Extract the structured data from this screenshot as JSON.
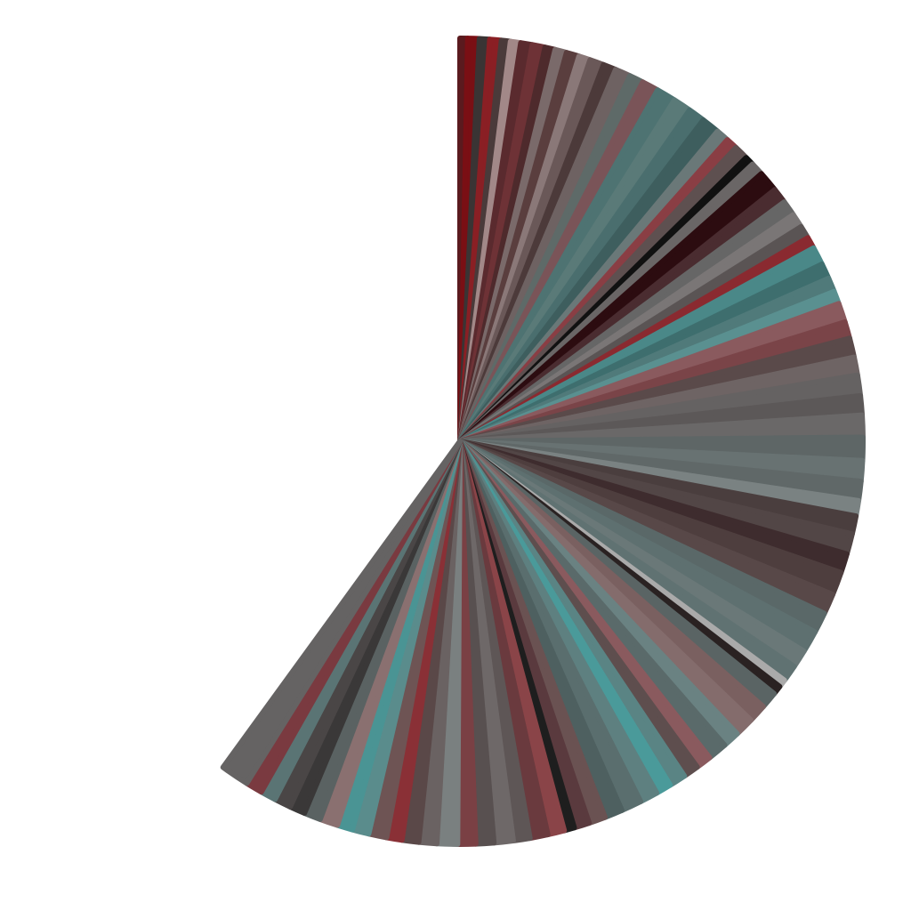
{
  "chart_data": {
    "type": "pie",
    "title": "",
    "legend": "none",
    "start_angle_deg": 0,
    "total_sweep_deg": 216,
    "slices": [
      {
        "value": 0.6,
        "color": "#5a1a1e"
      },
      {
        "value": 0.9,
        "color": "#7a0f14"
      },
      {
        "value": 0.8,
        "color": "#3a3434"
      },
      {
        "value": 0.9,
        "color": "#8a1f24"
      },
      {
        "value": 0.7,
        "color": "#4a3a3a"
      },
      {
        "value": 0.8,
        "color": "#a28888"
      },
      {
        "value": 0.9,
        "color": "#5a2a2e"
      },
      {
        "value": 1.0,
        "color": "#6e3236"
      },
      {
        "value": 0.8,
        "color": "#4e2a2c"
      },
      {
        "value": 0.9,
        "color": "#7a6a6a"
      },
      {
        "value": 1.0,
        "color": "#5a3e3e"
      },
      {
        "value": 0.9,
        "color": "#8a7878"
      },
      {
        "value": 1.1,
        "color": "#6a5858"
      },
      {
        "value": 1.0,
        "color": "#4c3a3a"
      },
      {
        "value": 1.2,
        "color": "#6e6262"
      },
      {
        "value": 1.1,
        "color": "#5e6a68"
      },
      {
        "value": 1.3,
        "color": "#7a5458"
      },
      {
        "value": 1.5,
        "color": "#4e7372"
      },
      {
        "value": 1.4,
        "color": "#5a7a78"
      },
      {
        "value": 1.3,
        "color": "#4a6e6e"
      },
      {
        "value": 1.4,
        "color": "#3e5e5e"
      },
      {
        "value": 1.0,
        "color": "#6a7878"
      },
      {
        "value": 0.9,
        "color": "#8a3e44"
      },
      {
        "value": 1.1,
        "color": "#5e5050"
      },
      {
        "value": 0.7,
        "color": "#111111"
      },
      {
        "value": 1.0,
        "color": "#6a6666"
      },
      {
        "value": 1.6,
        "color": "#2c0c10"
      },
      {
        "value": 1.2,
        "color": "#4a2c30"
      },
      {
        "value": 1.2,
        "color": "#666666"
      },
      {
        "value": 1.1,
        "color": "#7a7676"
      },
      {
        "value": 1.0,
        "color": "#5a5454"
      },
      {
        "value": 0.9,
        "color": "#8a2a30"
      },
      {
        "value": 1.4,
        "color": "#4a8888"
      },
      {
        "value": 1.2,
        "color": "#3e6e6e"
      },
      {
        "value": 1.1,
        "color": "#507a7a"
      },
      {
        "value": 1.0,
        "color": "#5a9090"
      },
      {
        "value": 1.5,
        "color": "#8a5a5e"
      },
      {
        "value": 1.3,
        "color": "#7a4448"
      },
      {
        "value": 1.5,
        "color": "#5a4a4a"
      },
      {
        "value": 1.4,
        "color": "#6e6464"
      },
      {
        "value": 1.6,
        "color": "#656262"
      },
      {
        "value": 1.5,
        "color": "#5c5858"
      },
      {
        "value": 1.7,
        "color": "#6a6868"
      },
      {
        "value": 1.8,
        "color": "#5e6666"
      },
      {
        "value": 1.6,
        "color": "#687272"
      },
      {
        "value": 1.5,
        "color": "#606868"
      },
      {
        "value": 1.2,
        "color": "#7a8282"
      },
      {
        "value": 1.4,
        "color": "#4a3e3e"
      },
      {
        "value": 1.6,
        "color": "#524646"
      },
      {
        "value": 1.5,
        "color": "#3e2c2e"
      },
      {
        "value": 1.8,
        "color": "#4e3e3e"
      },
      {
        "value": 1.6,
        "color": "#584848"
      },
      {
        "value": 1.6,
        "color": "#5a6868"
      },
      {
        "value": 1.7,
        "color": "#5e7070"
      },
      {
        "value": 1.4,
        "color": "#6a7878"
      },
      {
        "value": 1.3,
        "color": "#607272"
      },
      {
        "value": 0.6,
        "color": "#aaaaaa"
      },
      {
        "value": 0.7,
        "color": "#2a2222"
      },
      {
        "value": 1.3,
        "color": "#5a6464"
      },
      {
        "value": 1.4,
        "color": "#7a6060"
      },
      {
        "value": 1.5,
        "color": "#846c6c"
      },
      {
        "value": 1.3,
        "color": "#6a8282"
      },
      {
        "value": 1.5,
        "color": "#5a6a6a"
      },
      {
        "value": 1.2,
        "color": "#8a5a5e"
      },
      {
        "value": 1.2,
        "color": "#5e4e4e"
      },
      {
        "value": 1.3,
        "color": "#5a8484"
      },
      {
        "value": 1.2,
        "color": "#4a9a9a"
      },
      {
        "value": 1.4,
        "color": "#5e8080"
      },
      {
        "value": 1.6,
        "color": "#5a6e6e"
      },
      {
        "value": 1.4,
        "color": "#4e6060"
      },
      {
        "value": 1.3,
        "color": "#6a5252"
      },
      {
        "value": 1.2,
        "color": "#5a3a3e"
      },
      {
        "value": 0.8,
        "color": "#1e1e1e"
      },
      {
        "value": 1.3,
        "color": "#8a4448"
      },
      {
        "value": 1.4,
        "color": "#6a3a3e"
      },
      {
        "value": 1.3,
        "color": "#5e5656"
      },
      {
        "value": 1.5,
        "color": "#6e6868"
      },
      {
        "value": 1.4,
        "color": "#585050"
      },
      {
        "value": 1.4,
        "color": "#7a4044"
      },
      {
        "value": 1.6,
        "color": "#7a8080"
      },
      {
        "value": 1.4,
        "color": "#6a6262"
      },
      {
        "value": 1.3,
        "color": "#5a4848"
      },
      {
        "value": 1.2,
        "color": "#8a3036"
      },
      {
        "value": 1.4,
        "color": "#6e5454"
      },
      {
        "value": 1.3,
        "color": "#5a8c8c"
      },
      {
        "value": 1.2,
        "color": "#4a9494"
      },
      {
        "value": 1.4,
        "color": "#8a7070"
      },
      {
        "value": 1.3,
        "color": "#5a6262"
      },
      {
        "value": 1.2,
        "color": "#3a3838"
      },
      {
        "value": 1.3,
        "color": "#4a4646"
      },
      {
        "value": 1.2,
        "color": "#5a7474"
      },
      {
        "value": 1.3,
        "color": "#7a3a40"
      },
      {
        "value": 2.2,
        "color": "#656363"
      }
    ]
  }
}
